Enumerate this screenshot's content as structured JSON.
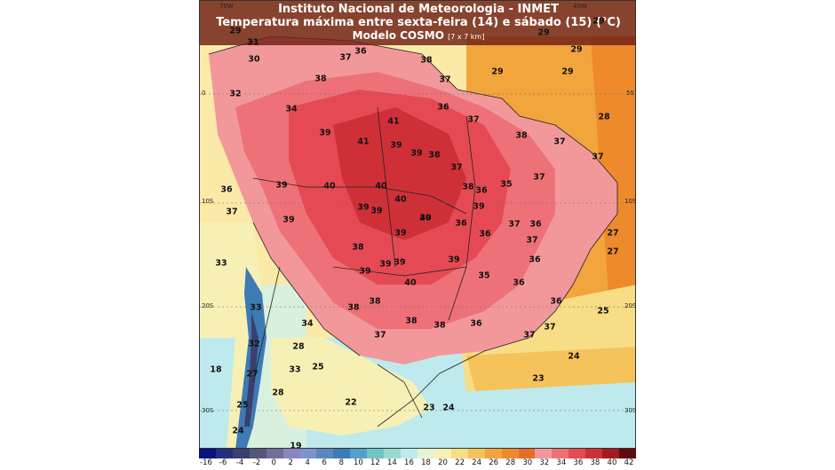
{
  "header": {
    "line1": "Instituto Nacional de Meteorologia - INMET",
    "line2": "Temperatura máxima entre sexta-feira (14) e sábado (15) (°C)",
    "line3": "Modelo COSMO",
    "line3_note": "[7 x 7 km]"
  },
  "axis_ticks": {
    "top": [
      "70W",
      "40W"
    ],
    "left": [
      "0",
      "10S",
      "20S",
      "30S"
    ],
    "right": [
      "5S",
      "10S",
      "20S",
      "30S"
    ]
  },
  "map_values": [
    "29",
    "31",
    "31",
    "36",
    "37",
    "38",
    "30",
    "32",
    "34",
    "38",
    "37",
    "29",
    "29",
    "29",
    "29",
    "29",
    "28",
    "39",
    "41",
    "41",
    "39",
    "39",
    "38",
    "37",
    "36",
    "37",
    "38",
    "37",
    "37",
    "37",
    "39",
    "40",
    "40",
    "40",
    "39",
    "39",
    "38",
    "36",
    "35",
    "36",
    "37",
    "39",
    "40",
    "39",
    "39",
    "39",
    "38",
    "36",
    "36",
    "37",
    "27",
    "27",
    "36",
    "37",
    "36",
    "39",
    "39",
    "39",
    "39",
    "40",
    "38",
    "38",
    "35",
    "36",
    "36",
    "33",
    "33",
    "34",
    "38",
    "38",
    "37",
    "37",
    "37",
    "36",
    "25",
    "32",
    "28",
    "33",
    "25",
    "24",
    "27",
    "28",
    "23",
    "18",
    "25",
    "22",
    "23",
    "24",
    "24",
    "19"
  ],
  "colorbar": {
    "labels": [
      "-16",
      "-6",
      "-4",
      "-2",
      "0",
      "2",
      "4",
      "6",
      "8",
      "10",
      "12",
      "14",
      "16",
      "18",
      "20",
      "22",
      "24",
      "26",
      "28",
      "30",
      "32",
      "34",
      "36",
      "38",
      "40",
      "42"
    ],
    "colors": [
      "#07127a",
      "#24307f",
      "#393f6e",
      "#55577a",
      "#6f6f9c",
      "#8a86c1",
      "#7b93cf",
      "#5c86be",
      "#3e7ab3",
      "#4fa0cc",
      "#6fc4c4",
      "#99d9d2",
      "#bfeaed",
      "#e4f3d5",
      "#f7f0b5",
      "#f6dd86",
      "#f5c35a",
      "#f2a43d",
      "#ee8a2c",
      "#e86b2a",
      "#f2989b",
      "#ee7178",
      "#e54a54",
      "#cf3038",
      "#a31b21",
      "#5e0b0f"
    ]
  }
}
